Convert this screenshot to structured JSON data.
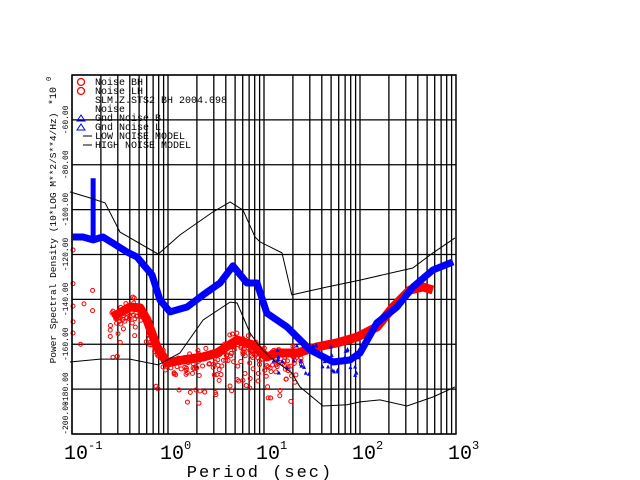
{
  "chart_data": {
    "type": "line",
    "title": "",
    "xlabel": "Period (sec)",
    "ylabel": "Power Spectral Density (10*LOG M**2/S**4/Hz)",
    "y_multiplier": "*10",
    "y_multiplier_exp": "0",
    "xscale": "log",
    "xlim": [
      0.1,
      1000
    ],
    "ylim": [
      -200,
      -40
    ],
    "grid": true,
    "x_ticks": [
      {
        "base": "10",
        "exp": "-1",
        "value": 0.1
      },
      {
        "base": "10",
        "exp": "0",
        "value": 1
      },
      {
        "base": "10",
        "exp": "1",
        "value": 10
      },
      {
        "base": "10",
        "exp": "2",
        "value": 100
      },
      {
        "base": "10",
        "exp": "3",
        "value": 1000
      }
    ],
    "y_ticks": [
      {
        "label": "-60.00",
        "value": -60
      },
      {
        "label": "-80.00",
        "value": -80
      },
      {
        "label": "-100.00",
        "value": -100
      },
      {
        "label": "-120.00",
        "value": -120
      },
      {
        "label": "-140.00",
        "value": -140
      },
      {
        "label": "-160.00",
        "value": -160
      },
      {
        "label": "-180.00",
        "value": -180
      },
      {
        "label": "-200.00",
        "value": -200
      }
    ],
    "legend_position": "top-left",
    "legend": [
      {
        "label": "Noise BH",
        "symbol": "circle",
        "color": "#ff0000"
      },
      {
        "label": "Noise LH",
        "symbol": "circle",
        "color": "#ff0000"
      },
      {
        "label": "SLM.Z.STS2 BH  2004.098",
        "symbol": "none",
        "color": "#000000"
      },
      {
        "label": "Noise",
        "symbol": "none",
        "color": "#000000"
      },
      {
        "label": "Gnd Noise B",
        "symbol": "triangle",
        "color": "#0000ff"
      },
      {
        "label": "Gnd Noise L",
        "symbol": "triangle",
        "color": "#0000ff"
      },
      {
        "label": "LOW NOISE MODEL",
        "symbol": "line",
        "color": "#000000"
      },
      {
        "label": "HIGH NOISE MODEL",
        "symbol": "line",
        "color": "#000000"
      }
    ],
    "series": [
      {
        "name": "Noise (red)",
        "color": "#ff0000",
        "points": [
          [
            0.267,
            -147.8
          ],
          [
            0.402,
            -143.4
          ],
          [
            0.511,
            -143.8
          ],
          [
            0.604,
            -149.2
          ],
          [
            0.767,
            -161.2
          ],
          [
            0.977,
            -168.3
          ],
          [
            1.43,
            -167
          ],
          [
            2.32,
            -165.7
          ],
          [
            3.24,
            -163.9
          ],
          [
            5.24,
            -158.1
          ],
          [
            7.67,
            -160.3
          ],
          [
            10.7,
            -165.7
          ],
          [
            13.6,
            -163.9
          ],
          [
            22.1,
            -163.9
          ],
          [
            35.7,
            -161.2
          ],
          [
            57.5,
            -159.4
          ],
          [
            93,
            -156.8
          ],
          [
            150,
            -152.3
          ],
          [
            221,
            -143.4
          ],
          [
            331,
            -135.8
          ],
          [
            453,
            -134.5
          ],
          [
            575,
            -135.8
          ]
        ]
      },
      {
        "name": "Gnd Noise (blue)",
        "color": "#0000ff",
        "points": [
          [
            0.102,
            -112.2
          ],
          [
            0.13,
            -112.2
          ],
          [
            0.166,
            -113.5
          ],
          [
            0.21,
            -112.2
          ],
          [
            0.267,
            -114.9
          ],
          [
            0.374,
            -118.9
          ],
          [
            0.475,
            -121.1
          ],
          [
            0.681,
            -129.1
          ],
          [
            0.826,
            -140.3
          ],
          [
            1.05,
            -145.6
          ],
          [
            1.58,
            -143.4
          ],
          [
            2.32,
            -138
          ],
          [
            3.48,
            -132.7
          ],
          [
            4.75,
            -125.1
          ],
          [
            6.65,
            -132.7
          ],
          [
            8.45,
            -132.7
          ],
          [
            10.7,
            -146.1
          ],
          [
            17.4,
            -152.3
          ],
          [
            30.2,
            -162.5
          ],
          [
            52.5,
            -167.9
          ],
          [
            78.7,
            -167
          ],
          [
            100,
            -163.9
          ],
          [
            150,
            -150.5
          ],
          [
            243,
            -143.4
          ],
          [
            356,
            -134.5
          ],
          [
            575,
            -126.9
          ],
          [
            933,
            -123.3
          ]
        ],
        "spike": [
          0.166,
          -86
        ]
      },
      {
        "name": "LOW NOISE MODEL",
        "color": "#000000",
        "points": [
          [
            0.095,
            -167.9
          ],
          [
            0.196,
            -166.6
          ],
          [
            0.4,
            -166.6
          ],
          [
            0.79,
            -169.2
          ],
          [
            1.33,
            -163.9
          ],
          [
            2.32,
            -149.2
          ],
          [
            4.43,
            -141.2
          ],
          [
            5.24,
            -141.6
          ],
          [
            7.14,
            -155
          ],
          [
            9.08,
            -161.2
          ],
          [
            11.5,
            -165.7
          ],
          [
            19.5,
            -172.8
          ],
          [
            23.7,
            -179
          ],
          [
            41.2,
            -187.5
          ],
          [
            73.3,
            -187
          ],
          [
            100,
            -185.7
          ],
          [
            162,
            -184.8
          ],
          [
            309,
            -187.5
          ],
          [
            575,
            -183.5
          ],
          [
            977,
            -179
          ]
        ]
      },
      {
        "name": "HIGH NOISE MODEL",
        "color": "#000000",
        "points": [
          [
            0.095,
            -92.1
          ],
          [
            0.155,
            -94.8
          ],
          [
            0.221,
            -97
          ],
          [
            0.316,
            -110
          ],
          [
            0.79,
            -119.8
          ],
          [
            1.33,
            -111.3
          ],
          [
            2.94,
            -101
          ],
          [
            4.43,
            -96.6
          ],
          [
            6.04,
            -100.2
          ],
          [
            8.05,
            -112.2
          ],
          [
            9.08,
            -114.4
          ],
          [
            15.4,
            -119.3
          ],
          [
            19.5,
            -138
          ],
          [
            45.3,
            -134.5
          ],
          [
            100,
            -131.4
          ],
          [
            355,
            -126
          ],
          [
            575,
            -119.3
          ],
          [
            977,
            -112.6
          ]
        ]
      }
    ]
  }
}
